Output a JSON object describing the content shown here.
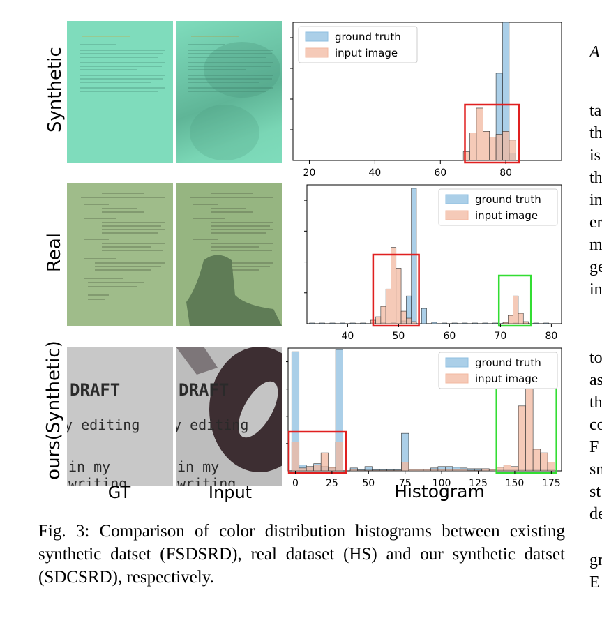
{
  "figure": {
    "row_labels": [
      "Synthetic",
      "Real",
      "ours(Synthetic)"
    ],
    "column_labels": [
      "GT",
      "Input",
      "Histogram"
    ],
    "thumbnails": {
      "ours_gt_lines": [
        "DRAFT",
        "y editing",
        "in my writing"
      ],
      "ours_input_lines": [
        "DRAFT",
        "y editing",
        "in my writing"
      ]
    },
    "caption": "Fig. 3: Comparison of color distribution histograms between existing synthetic datset (FSDSRD), real dataset (HS) and our synthetic datset (SDCSRD), respectively."
  },
  "side_column": {
    "lines": [
      "A",
      "ta",
      "th",
      "is",
      "th",
      "in",
      "er",
      "m",
      "ge",
      "in",
      "to",
      "as",
      "th",
      "co",
      "F",
      "sn",
      "st",
      "de",
      "gr",
      "E"
    ]
  },
  "colors": {
    "ground_truth": "#8fbfe0",
    "input_image": "#f2b8a0",
    "red_box": "#e02020",
    "green_box": "#33dd33"
  },
  "chart_data": [
    {
      "type": "bar",
      "panel": "Synthetic",
      "xlabel": "",
      "xlim": [
        15,
        97
      ],
      "ylim": [
        0,
        190
      ],
      "xticks": [
        20,
        40,
        60,
        80
      ],
      "bin_width": 2,
      "legend": [
        "ground truth",
        "input image"
      ],
      "legend_position": "top-left",
      "series": [
        {
          "name": "ground truth",
          "x": [
            78,
            80,
            82
          ],
          "values": [
            120,
            190,
            10
          ]
        },
        {
          "name": "input image",
          "x": [
            68,
            70,
            72,
            74,
            76,
            78,
            80,
            82
          ],
          "values": [
            12,
            38,
            72,
            40,
            32,
            36,
            40,
            28
          ]
        }
      ],
      "boxes": [
        {
          "color": "red",
          "x": [
            67.5,
            84
          ]
        }
      ]
    },
    {
      "type": "bar",
      "panel": "Real",
      "xlabel": "",
      "xlim": [
        32,
        82
      ],
      "ylim": [
        0,
        200
      ],
      "xticks": [
        40,
        50,
        60,
        70,
        80
      ],
      "bin_width": 1,
      "legend": [
        "ground truth",
        "input image"
      ],
      "legend_position": "top-right",
      "series": [
        {
          "name": "ground truth",
          "x": [
            33,
            35,
            37,
            39,
            41,
            43,
            45,
            47,
            49,
            51,
            52,
            53,
            55,
            57,
            59,
            61,
            63,
            65,
            67,
            69,
            71,
            73,
            75,
            77,
            79
          ],
          "values": [
            1,
            1,
            1,
            1,
            1,
            1,
            2,
            2,
            2,
            4,
            40,
            195,
            22,
            2,
            1,
            1,
            1,
            1,
            1,
            1,
            1,
            1,
            1,
            1,
            1
          ]
        },
        {
          "name": "input image",
          "x": [
            45,
            46,
            47,
            48,
            49,
            50,
            51,
            52,
            53,
            71,
            72,
            73,
            74,
            75
          ],
          "values": [
            5,
            10,
            25,
            50,
            110,
            80,
            18,
            8,
            3,
            2,
            12,
            40,
            15,
            3
          ]
        }
      ],
      "boxes": [
        {
          "color": "red",
          "x": [
            45,
            54
          ]
        },
        {
          "color": "green",
          "x": [
            69.7,
            76
          ]
        }
      ]
    },
    {
      "type": "bar",
      "panel": "ours(Synthetic)",
      "xlabel": "Histogram",
      "xlim": [
        -5,
        182
      ],
      "ylim": [
        0,
        170
      ],
      "xticks": [
        0,
        25,
        50,
        75,
        100,
        125,
        150,
        175
      ],
      "bin_width": 5,
      "legend": [
        "ground truth",
        "input image"
      ],
      "legend_position": "top-right",
      "series": [
        {
          "name": "ground truth",
          "x": [
            0,
            5,
            10,
            15,
            20,
            25,
            30,
            40,
            45,
            50,
            55,
            60,
            65,
            70,
            75,
            80,
            85,
            90,
            95,
            100,
            105,
            110,
            115,
            120,
            125,
            130,
            135,
            140,
            145,
            150,
            155,
            160,
            165,
            170,
            175
          ],
          "values": [
            165,
            8,
            6,
            10,
            6,
            4,
            168,
            4,
            2,
            6,
            2,
            2,
            2,
            2,
            52,
            2,
            2,
            2,
            4,
            6,
            6,
            5,
            4,
            3,
            3,
            2,
            2,
            2,
            2,
            2,
            2,
            2,
            2,
            2,
            2
          ]
        },
        {
          "name": "input image",
          "x": [
            0,
            5,
            10,
            15,
            20,
            25,
            30,
            40,
            45,
            50,
            55,
            60,
            65,
            70,
            75,
            80,
            85,
            90,
            95,
            100,
            105,
            110,
            115,
            120,
            125,
            130,
            135,
            140,
            145,
            150,
            155,
            160,
            165,
            170,
            175
          ],
          "values": [
            40,
            4,
            6,
            8,
            25,
            5,
            40,
            2,
            1,
            1,
            1,
            1,
            1,
            1,
            12,
            2,
            2,
            2,
            2,
            2,
            2,
            2,
            2,
            1,
            1,
            3,
            2,
            5,
            8,
            6,
            90,
            120,
            30,
            25,
            12
          ]
        }
      ],
      "boxes": [
        {
          "color": "red",
          "x": [
            -4.5,
            34.5
          ]
        },
        {
          "color": "green",
          "x": [
            137.5,
            178.5
          ]
        }
      ]
    }
  ]
}
